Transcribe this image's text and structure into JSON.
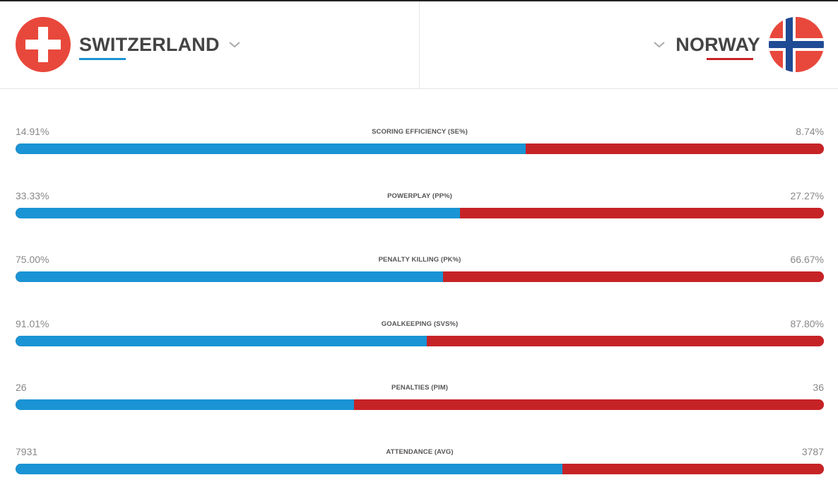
{
  "home": {
    "name": "SWITZERLAND",
    "flag_icon": "switzerland-flag-icon",
    "color": "#1a94d4"
  },
  "away": {
    "name": "NORWAY",
    "flag_icon": "norway-flag-icon",
    "color": "#c62327"
  },
  "stats": [
    {
      "label": "SCORING EFFICIENCY (SE%)",
      "home": "14.91%",
      "away": "8.74%",
      "home_share": 0.631
    },
    {
      "label": "POWERPLAY (PP%)",
      "home": "33.33%",
      "away": "27.27%",
      "home_share": 0.55
    },
    {
      "label": "PENALTY KILLING (PK%)",
      "home": "75.00%",
      "away": "66.67%",
      "home_share": 0.529
    },
    {
      "label": "GOALKEEPING (SVS%)",
      "home": "91.01%",
      "away": "87.80%",
      "home_share": 0.509
    },
    {
      "label": "PENALTIES (PIM)",
      "home": "26",
      "away": "36",
      "home_share": 0.419
    },
    {
      "label": "ATTENDANCE (AVG)",
      "home": "7931",
      "away": "3787",
      "home_share": 0.677
    }
  ]
}
